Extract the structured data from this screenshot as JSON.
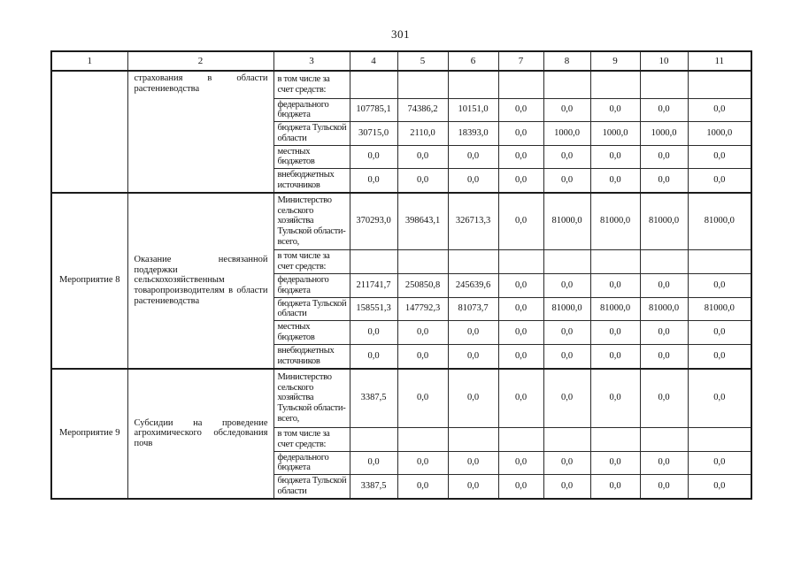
{
  "page": {
    "number": "301"
  },
  "colors": {
    "paper": "#ffffff",
    "ink": "#121212",
    "border": "#1b1b1b"
  },
  "table": {
    "columns": [
      "1",
      "2",
      "3",
      "4",
      "5",
      "6",
      "7",
      "8",
      "9",
      "10",
      "11"
    ],
    "sections": [
      {
        "activity": "",
        "description": "страхования в области растениеводства",
        "rows": [
          {
            "label": "в том числе за счет средств:",
            "values": [
              "",
              "",
              "",
              "",
              "",
              "",
              "",
              ""
            ]
          },
          {
            "label": "федерального бюджета",
            "values": [
              "107785,1",
              "74386,2",
              "10151,0",
              "0,0",
              "0,0",
              "0,0",
              "0,0",
              "0,0"
            ]
          },
          {
            "label": "бюджета Тульской области",
            "values": [
              "30715,0",
              "2110,0",
              "18393,0",
              "0,0",
              "1000,0",
              "1000,0",
              "1000,0",
              "1000,0"
            ]
          },
          {
            "label": "местных бюджетов",
            "values": [
              "0,0",
              "0,0",
              "0,0",
              "0,0",
              "0,0",
              "0,0",
              "0,0",
              "0,0"
            ]
          },
          {
            "label": "внебюджетных источников",
            "values": [
              "0,0",
              "0,0",
              "0,0",
              "0,0",
              "0,0",
              "0,0",
              "0,0",
              "0,0"
            ]
          }
        ]
      },
      {
        "activity": "Мероприятие 8",
        "description": "Оказание несвязанной поддержки сельскохозяйственным товаропроизводителям в области растениеводства",
        "rows": [
          {
            "label": "Министерство сельского хозяйства Тульской области-всего,",
            "values": [
              "370293,0",
              "398643,1",
              "326713,3",
              "0,0",
              "81000,0",
              "81000,0",
              "81000,0",
              "81000,0"
            ]
          },
          {
            "label": "в том числе за счет средств:",
            "values": [
              "",
              "",
              "",
              "",
              "",
              "",
              "",
              ""
            ]
          },
          {
            "label": "федерального бюджета",
            "values": [
              "211741,7",
              "250850,8",
              "245639,6",
              "0,0",
              "0,0",
              "0,0",
              "0,0",
              "0,0"
            ]
          },
          {
            "label": "бюджета Тульской области",
            "values": [
              "158551,3",
              "147792,3",
              "81073,7",
              "0,0",
              "81000,0",
              "81000,0",
              "81000,0",
              "81000,0"
            ]
          },
          {
            "label": "местных бюджетов",
            "values": [
              "0,0",
              "0,0",
              "0,0",
              "0,0",
              "0,0",
              "0,0",
              "0,0",
              "0,0"
            ]
          },
          {
            "label": "внебюджетных источников",
            "values": [
              "0,0",
              "0,0",
              "0,0",
              "0,0",
              "0,0",
              "0,0",
              "0,0",
              "0,0"
            ]
          }
        ]
      },
      {
        "activity": "Мероприятие 9",
        "description": "Субсидии на проведение агрохимического обследования почв",
        "rows": [
          {
            "label": "Министерство сельского хозяйства Тульской области-всего,",
            "values": [
              "3387,5",
              "0,0",
              "0,0",
              "0,0",
              "0,0",
              "0,0",
              "0,0",
              "0,0"
            ]
          },
          {
            "label": "в том числе за счет средств:",
            "values": [
              "",
              "",
              "",
              "",
              "",
              "",
              "",
              ""
            ]
          },
          {
            "label": "федерального бюджета",
            "values": [
              "0,0",
              "0,0",
              "0,0",
              "0,0",
              "0,0",
              "0,0",
              "0,0",
              "0,0"
            ]
          },
          {
            "label": "бюджета Тульской области",
            "values": [
              "3387,5",
              "0,0",
              "0,0",
              "0,0",
              "0,0",
              "0,0",
              "0,0",
              "0,0"
            ]
          }
        ]
      }
    ]
  }
}
